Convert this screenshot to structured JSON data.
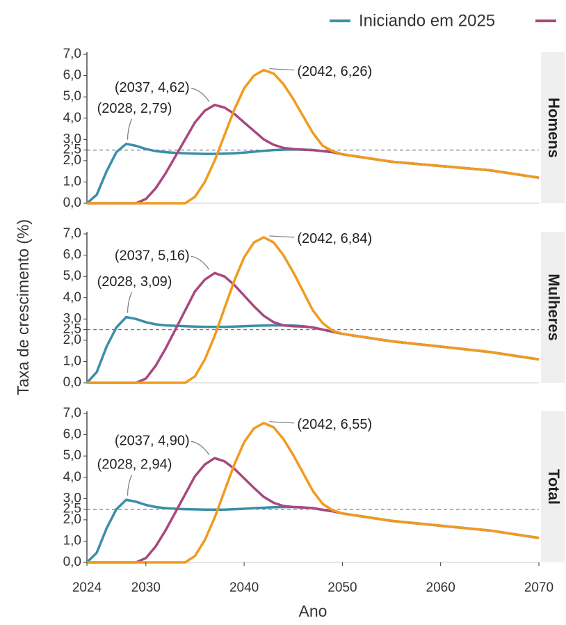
{
  "chart_data": [
    {
      "type": "line",
      "facet": "Homens",
      "x": [
        2024,
        2025,
        2026,
        2027,
        2028,
        2029,
        2030,
        2031,
        2032,
        2033,
        2034,
        2035,
        2036,
        2037,
        2038,
        2039,
        2040,
        2041,
        2042,
        2043,
        2044,
        2045,
        2046,
        2047,
        2048,
        2049,
        2050,
        2055,
        2060,
        2065,
        2070
      ],
      "series": [
        {
          "name": "Iniciando em 2025",
          "color": "#3b8ea8",
          "values": [
            0,
            0.4,
            1.5,
            2.4,
            2.79,
            2.7,
            2.55,
            2.45,
            2.4,
            2.37,
            2.35,
            2.33,
            2.32,
            2.32,
            2.33,
            2.35,
            2.38,
            2.42,
            2.46,
            2.5,
            2.52,
            2.53,
            2.52,
            2.5,
            2.45,
            2.4,
            2.3,
            1.95,
            1.75,
            1.55,
            1.2
          ]
        },
        {
          "color": "#a8487f",
          "values": [
            0,
            0,
            0,
            0,
            0,
            0,
            0.2,
            0.7,
            1.4,
            2.2,
            3.0,
            3.8,
            4.35,
            4.62,
            4.5,
            4.2,
            3.8,
            3.4,
            3.0,
            2.75,
            2.6,
            2.55,
            2.52,
            2.5,
            2.45,
            2.4,
            2.3,
            1.95,
            1.75,
            1.55,
            1.2
          ]
        },
        {
          "color": "#f09b1e",
          "values": [
            0,
            0,
            0,
            0,
            0,
            0,
            0,
            0,
            0,
            0,
            0,
            0.3,
            1.0,
            2.0,
            3.2,
            4.4,
            5.4,
            6.0,
            6.26,
            6.1,
            5.6,
            4.9,
            4.1,
            3.3,
            2.7,
            2.45,
            2.3,
            1.95,
            1.75,
            1.55,
            1.2
          ]
        }
      ],
      "annotations": [
        "(2028, 2,79)",
        "(2037, 4,62)",
        "(2042, 6,26)"
      ],
      "hline": 2.5,
      "xlim": [
        2024,
        2070
      ],
      "ylim": [
        0,
        7.1
      ],
      "yticks": [
        {
          "value": 0,
          "label": "0,0"
        },
        {
          "value": 1,
          "label": "1,0"
        },
        {
          "value": 2,
          "label": "2,0"
        },
        {
          "value": 2.5,
          "label": "2,5"
        },
        {
          "value": 3,
          "label": "3,0"
        },
        {
          "value": 4,
          "label": "4,0"
        },
        {
          "value": 5,
          "label": "5,0"
        },
        {
          "value": 6,
          "label": "6,0"
        },
        {
          "value": 7,
          "label": "7,0"
        }
      ]
    },
    {
      "type": "line",
      "facet": "Mulheres",
      "ylabel": "Taxa de crescimento (%)",
      "x": [
        2024,
        2025,
        2026,
        2027,
        2028,
        2029,
        2030,
        2031,
        2032,
        2033,
        2034,
        2035,
        2036,
        2037,
        2038,
        2039,
        2040,
        2041,
        2042,
        2043,
        2044,
        2045,
        2046,
        2047,
        2048,
        2049,
        2050,
        2055,
        2060,
        2065,
        2070
      ],
      "series": [
        {
          "color": "#3b8ea8",
          "values": [
            0,
            0.5,
            1.7,
            2.6,
            3.09,
            3.0,
            2.85,
            2.75,
            2.7,
            2.68,
            2.66,
            2.64,
            2.63,
            2.63,
            2.63,
            2.64,
            2.66,
            2.68,
            2.69,
            2.7,
            2.7,
            2.69,
            2.66,
            2.6,
            2.5,
            2.4,
            2.3,
            1.95,
            1.7,
            1.45,
            1.1
          ]
        },
        {
          "color": "#a8487f",
          "values": [
            0,
            0,
            0,
            0,
            0,
            0,
            0.2,
            0.8,
            1.6,
            2.5,
            3.4,
            4.3,
            4.85,
            5.16,
            5.0,
            4.6,
            4.1,
            3.6,
            3.15,
            2.85,
            2.7,
            2.66,
            2.64,
            2.6,
            2.5,
            2.4,
            2.3,
            1.95,
            1.7,
            1.45,
            1.1
          ]
        },
        {
          "color": "#f09b1e",
          "values": [
            0,
            0,
            0,
            0,
            0,
            0,
            0,
            0,
            0,
            0,
            0,
            0.3,
            1.1,
            2.2,
            3.5,
            4.8,
            5.9,
            6.6,
            6.84,
            6.6,
            6.0,
            5.2,
            4.3,
            3.4,
            2.8,
            2.45,
            2.3,
            1.95,
            1.7,
            1.45,
            1.1
          ]
        }
      ],
      "annotations": [
        "(2028, 3,09)",
        "(2037, 5,16)",
        "(2042, 6,84)"
      ],
      "hline": 2.5,
      "xlim": [
        2024,
        2070
      ],
      "ylim": [
        0,
        7.1
      ],
      "yticks": [
        {
          "value": 0,
          "label": "0,0"
        },
        {
          "value": 1,
          "label": "1,0"
        },
        {
          "value": 2,
          "label": "2,0"
        },
        {
          "value": 2.5,
          "label": "2,5"
        },
        {
          "value": 3,
          "label": "3,0"
        },
        {
          "value": 4,
          "label": "4,0"
        },
        {
          "value": 5,
          "label": "5,0"
        },
        {
          "value": 6,
          "label": "6,0"
        },
        {
          "value": 7,
          "label": "7,0"
        }
      ]
    },
    {
      "type": "line",
      "facet": "Total",
      "xlabel": "Ano",
      "x": [
        2024,
        2025,
        2026,
        2027,
        2028,
        2029,
        2030,
        2031,
        2032,
        2033,
        2034,
        2035,
        2036,
        2037,
        2038,
        2039,
        2040,
        2041,
        2042,
        2043,
        2044,
        2045,
        2046,
        2047,
        2048,
        2049,
        2050,
        2055,
        2060,
        2065,
        2070
      ],
      "series": [
        {
          "color": "#3b8ea8",
          "values": [
            0,
            0.45,
            1.6,
            2.5,
            2.94,
            2.85,
            2.7,
            2.6,
            2.55,
            2.52,
            2.5,
            2.49,
            2.48,
            2.48,
            2.48,
            2.5,
            2.52,
            2.55,
            2.57,
            2.59,
            2.6,
            2.6,
            2.58,
            2.55,
            2.47,
            2.4,
            2.3,
            1.95,
            1.72,
            1.5,
            1.15
          ]
        },
        {
          "color": "#a8487f",
          "values": [
            0,
            0,
            0,
            0,
            0,
            0,
            0.2,
            0.75,
            1.5,
            2.35,
            3.2,
            4.05,
            4.6,
            4.9,
            4.75,
            4.4,
            3.95,
            3.5,
            3.08,
            2.8,
            2.65,
            2.6,
            2.58,
            2.55,
            2.47,
            2.4,
            2.3,
            1.95,
            1.72,
            1.5,
            1.15
          ]
        },
        {
          "color": "#f09b1e",
          "values": [
            0,
            0,
            0,
            0,
            0,
            0,
            0,
            0,
            0,
            0,
            0,
            0.3,
            1.05,
            2.1,
            3.35,
            4.6,
            5.65,
            6.3,
            6.55,
            6.35,
            5.8,
            5.05,
            4.2,
            3.35,
            2.75,
            2.45,
            2.3,
            1.95,
            1.72,
            1.5,
            1.15
          ]
        }
      ],
      "annotations": [
        "(2028, 2,94)",
        "(2037, 4,90)",
        "(2042, 6,55)"
      ],
      "hline": 2.5,
      "xlim": [
        2024,
        2070
      ],
      "ylim": [
        0,
        7.1
      ],
      "xticks": [
        2024,
        2030,
        2040,
        2050,
        2060,
        2070
      ],
      "yticks": [
        {
          "value": 0,
          "label": "0,0"
        },
        {
          "value": 1,
          "label": "1,0"
        },
        {
          "value": 2,
          "label": "2,0"
        },
        {
          "value": 2.5,
          "label": "2,5"
        },
        {
          "value": 3,
          "label": "3,0"
        },
        {
          "value": 4,
          "label": "4,0"
        },
        {
          "value": 5,
          "label": "5,0"
        },
        {
          "value": 6,
          "label": "6,0"
        },
        {
          "value": 7,
          "label": "7,0"
        }
      ]
    }
  ]
}
